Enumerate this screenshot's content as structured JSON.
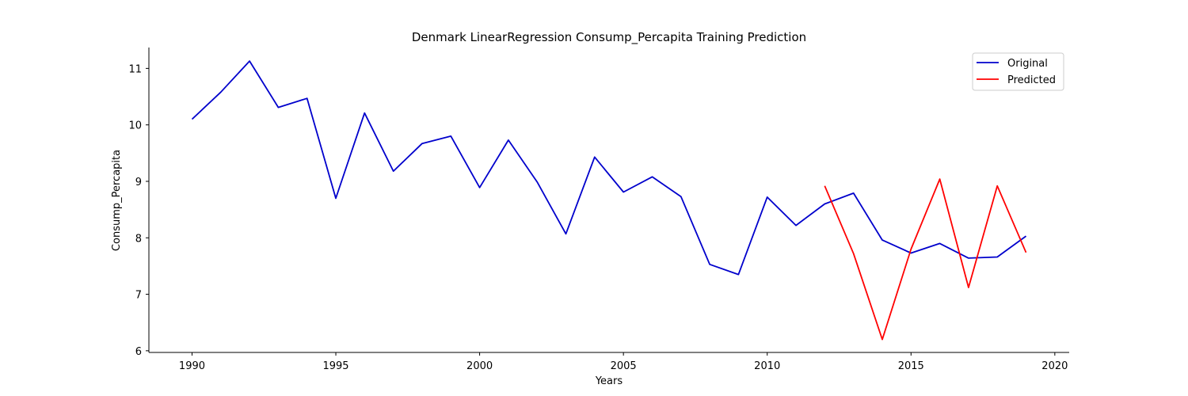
{
  "chart_data": {
    "type": "line",
    "title": "Denmark LinearRegression Consump_Percapita Training Prediction",
    "xlabel": "Years",
    "ylabel": "Consump_Percapita",
    "xlim": [
      1988.5,
      2020.5
    ],
    "ylim": [
      5.97,
      11.37
    ],
    "xticks": [
      1990,
      1995,
      2000,
      2005,
      2010,
      2015,
      2020
    ],
    "yticks": [
      6,
      7,
      8,
      9,
      10,
      11
    ],
    "grid": false,
    "legend_position": "top-right",
    "series": [
      {
        "name": "Original",
        "color": "#0000cc",
        "points": [
          [
            1990,
            10.1
          ],
          [
            1991,
            10.58
          ],
          [
            1992,
            11.13
          ],
          [
            1993,
            10.31
          ],
          [
            1994,
            10.47
          ],
          [
            1995,
            8.7
          ],
          [
            1996,
            10.21
          ],
          [
            1997,
            9.18
          ],
          [
            1998,
            9.67
          ],
          [
            1999,
            9.8
          ],
          [
            2000,
            8.89
          ],
          [
            2001,
            9.73
          ],
          [
            2002,
            8.99
          ],
          [
            2003,
            8.07
          ],
          [
            2004,
            9.43
          ],
          [
            2005,
            8.81
          ],
          [
            2006,
            9.08
          ],
          [
            2007,
            8.73
          ],
          [
            2008,
            7.53
          ],
          [
            2009,
            7.35
          ],
          [
            2010,
            8.72
          ],
          [
            2011,
            8.22
          ],
          [
            2012,
            8.6
          ],
          [
            2013,
            8.79
          ],
          [
            2014,
            7.96
          ],
          [
            2015,
            7.73
          ],
          [
            2016,
            7.9
          ],
          [
            2017,
            7.64
          ],
          [
            2018,
            7.66
          ],
          [
            2019,
            8.03
          ]
        ]
      },
      {
        "name": "Predicted",
        "color": "#ff0000",
        "points": [
          [
            2012,
            8.92
          ],
          [
            2013,
            7.72
          ],
          [
            2014,
            6.2
          ],
          [
            2015,
            7.8
          ],
          [
            2016,
            9.04
          ],
          [
            2017,
            7.12
          ],
          [
            2018,
            8.92
          ],
          [
            2019,
            7.74
          ]
        ]
      }
    ]
  }
}
